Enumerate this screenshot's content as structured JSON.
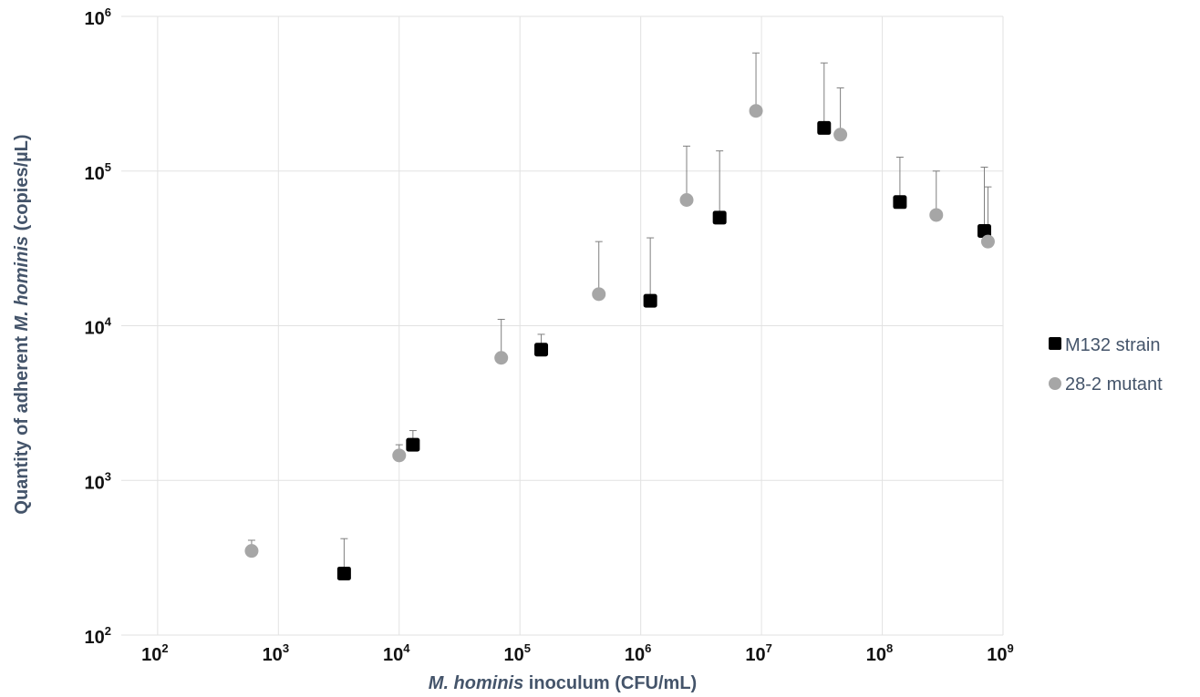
{
  "chart_data": {
    "type": "scatter",
    "title": "",
    "xlabel_italic": "M. hominis",
    "xlabel_rest": " inoculum (CFU/mL)",
    "ylabel_prefix": "Quantity of adherent ",
    "ylabel_italic": "M. hominis",
    "ylabel_suffix": " (copies/µL)",
    "x_scale": "log",
    "y_scale": "log",
    "xlim": [
      50,
      1000000000
    ],
    "ylim": [
      100,
      1000000
    ],
    "x_ticks": [
      {
        "base": "10",
        "exp": "2",
        "value": 100
      },
      {
        "base": "10",
        "exp": "3",
        "value": 1000
      },
      {
        "base": "10",
        "exp": "4",
        "value": 10000
      },
      {
        "base": "10",
        "exp": "5",
        "value": 100000
      },
      {
        "base": "10",
        "exp": "6",
        "value": 1000000
      },
      {
        "base": "10",
        "exp": "7",
        "value": 10000000
      },
      {
        "base": "10",
        "exp": "8",
        "value": 100000000
      },
      {
        "base": "10",
        "exp": "9",
        "value": 1000000000
      }
    ],
    "y_ticks": [
      {
        "base": "10",
        "exp": "2",
        "value": 100
      },
      {
        "base": "10",
        "exp": "3",
        "value": 1000
      },
      {
        "base": "10",
        "exp": "4",
        "value": 10000
      },
      {
        "base": "10",
        "exp": "5",
        "value": 100000
      },
      {
        "base": "10",
        "exp": "6",
        "value": 1000000
      }
    ],
    "grid": true,
    "legend_position": "right",
    "series": [
      {
        "name": "M132 strain",
        "marker": "square",
        "color": "#000000",
        "points": [
          {
            "x": 3500,
            "y": 250,
            "err_upper": 420
          },
          {
            "x": 13000,
            "y": 1700,
            "err_upper": 2100
          },
          {
            "x": 150000,
            "y": 7000,
            "err_upper": 8800
          },
          {
            "x": 1200000,
            "y": 14500,
            "err_upper": 37000
          },
          {
            "x": 4500000,
            "y": 50000,
            "err_upper": 135000
          },
          {
            "x": 33000000,
            "y": 190000,
            "err_upper": 500000
          },
          {
            "x": 140000000,
            "y": 63000,
            "err_upper": 123000
          },
          {
            "x": 700000000,
            "y": 41000,
            "err_upper": 106000
          }
        ]
      },
      {
        "name": "28-2 mutant",
        "marker": "circle",
        "color": "#a6a6a6",
        "points": [
          {
            "x": 600,
            "y": 350,
            "err_upper": 410
          },
          {
            "x": 10000,
            "y": 1450,
            "err_upper": 1700
          },
          {
            "x": 70000,
            "y": 6200,
            "err_upper": 11000
          },
          {
            "x": 450000,
            "y": 16000,
            "err_upper": 35000
          },
          {
            "x": 2400000,
            "y": 65000,
            "err_upper": 145000
          },
          {
            "x": 9000000,
            "y": 245000,
            "err_upper": 580000
          },
          {
            "x": 45000000,
            "y": 172000,
            "err_upper": 345000
          },
          {
            "x": 280000000,
            "y": 52000,
            "err_upper": 100000
          },
          {
            "x": 750000000,
            "y": 35000,
            "err_upper": 79000
          }
        ]
      }
    ]
  }
}
